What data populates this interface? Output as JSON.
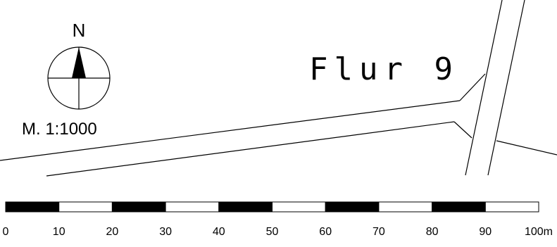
{
  "map": {
    "north_label": "N",
    "scale_text": "M. 1:1000",
    "parcel_label": "Flur 9"
  },
  "scale_bar": {
    "ticks": [
      "0",
      "10",
      "20",
      "30",
      "40",
      "50",
      "60",
      "70",
      "80",
      "90",
      "100m"
    ]
  },
  "colors": {
    "ink": "#000000",
    "paper": "#ffffff"
  }
}
